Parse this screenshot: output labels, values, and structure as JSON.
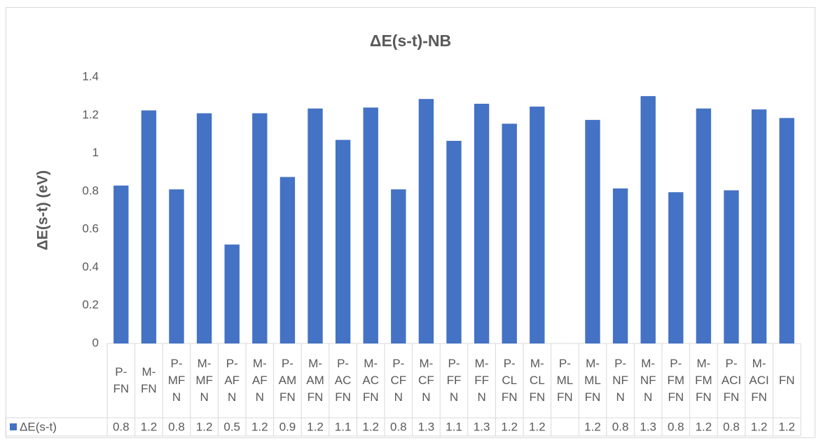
{
  "chart_data": {
    "type": "bar",
    "title": "ΔE(s-t)-NB",
    "y_label": "ΔE(s-t) (eV)",
    "categories": [
      "P-FN",
      "M-FN",
      "P-MFN",
      "M-MFN",
      "P-AFN",
      "M-AFN",
      "P-AMFN",
      "M-AMFN",
      "P-ACFN",
      "M-ACFN",
      "P-CFN",
      "M-CFN",
      "P-FFN",
      "M-FFN",
      "P-CLFN",
      "M-CLFN",
      "P-MLFN",
      "M-MLFN",
      "P-NFN",
      "M-NFN",
      "P-FMFN",
      "M-FMFN",
      "P-ACIFN",
      "M-ACIFN",
      "FN"
    ],
    "series": [
      {
        "name": "ΔE(s-t)",
        "color": "#4472c4",
        "values": [
          0.83,
          1.225,
          0.81,
          1.21,
          0.52,
          1.21,
          0.875,
          1.235,
          1.07,
          1.24,
          0.81,
          1.285,
          1.065,
          1.26,
          1.155,
          1.245,
          null,
          1.175,
          0.815,
          1.3,
          0.795,
          1.235,
          0.805,
          1.23,
          1.185
        ],
        "value_labels": [
          "0.8",
          "1.2",
          "0.8",
          "1.2",
          "0.5",
          "1.2",
          "0.9",
          "1.2",
          "1.1",
          "1.2",
          "0.8",
          "1.3",
          "1.1",
          "1.3",
          "1.2",
          "1.2",
          null,
          "1.2",
          "0.8",
          "1.3",
          "0.8",
          "1.2",
          "0.8",
          "1.2",
          "1.2"
        ]
      }
    ],
    "ylim": [
      0,
      1.4
    ],
    "yticks": [
      0,
      0.2,
      0.4,
      0.6,
      0.8,
      1,
      1.2,
      1.4
    ],
    "grid": false
  }
}
